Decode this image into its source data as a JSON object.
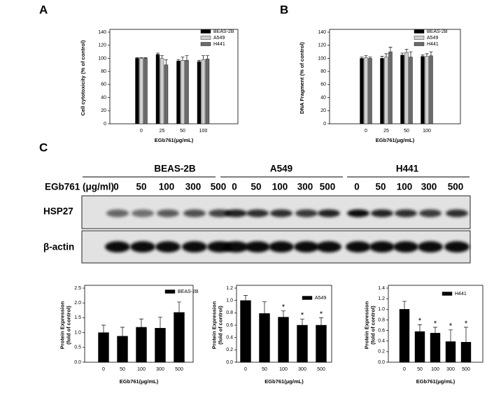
{
  "panels": [
    "A",
    "B",
    "C"
  ],
  "blot": {
    "groups": [
      "BEAS-2B",
      "A549",
      "H441"
    ],
    "dose_label": "EGb761 (μg/ml)",
    "doses": [
      "0",
      "50",
      "100",
      "300",
      "500",
      "0",
      "50",
      "100",
      "300",
      "500",
      "0",
      "50",
      "100",
      "300",
      "500"
    ],
    "rows": [
      "HSP27",
      "β-actin"
    ]
  },
  "chart_data": [
    {
      "type": "bar",
      "ylabel": [
        "Cell cytotoxicity (% of control)"
      ],
      "xlabel": "EGb761(μg/mL)",
      "categories": [
        "0",
        "25",
        "50",
        "100"
      ],
      "series": [
        {
          "name": "BEAS-2B",
          "color": "#000000",
          "values": [
            100,
            106,
            96,
            95
          ],
          "errors": [
            1,
            2,
            2,
            2
          ]
        },
        {
          "name": "A549",
          "color": "#d0d0d0",
          "values": [
            100,
            100,
            97,
            98
          ],
          "errors": [
            1,
            4,
            5,
            6
          ]
        },
        {
          "name": "H441",
          "color": "#6a6a6a",
          "values": [
            100,
            90,
            97,
            99
          ],
          "errors": [
            1,
            8,
            7,
            5
          ]
        }
      ],
      "ylim": [
        0,
        140
      ],
      "yticks": [
        0,
        20,
        40,
        60,
        80,
        100,
        120,
        140
      ]
    },
    {
      "type": "bar",
      "ylabel": [
        "DNA Fragment (% of control)"
      ],
      "xlabel": "EGb761(μg/mL)",
      "categories": [
        "0",
        "25",
        "50",
        "100"
      ],
      "series": [
        {
          "name": "BEAS-2B",
          "color": "#000000",
          "values": [
            100,
            100,
            105,
            103
          ],
          "errors": [
            2,
            3,
            3,
            2
          ]
        },
        {
          "name": "A549",
          "color": "#d0d0d0",
          "values": [
            101,
            102,
            109,
            103
          ],
          "errors": [
            3,
            5,
            5,
            4
          ]
        },
        {
          "name": "H441",
          "color": "#6a6a6a",
          "values": [
            100,
            110,
            102,
            104
          ],
          "errors": [
            2,
            7,
            8,
            6
          ]
        }
      ],
      "ylim": [
        0,
        140
      ],
      "yticks": [
        0,
        20,
        40,
        60,
        80,
        100,
        120,
        140
      ]
    },
    {
      "type": "bar",
      "ylabel": [
        "Protein Expression",
        "(fold of control)"
      ],
      "xlabel": "EGb761(μg/mL)",
      "categories": [
        "0",
        "50",
        "100",
        "300",
        "500"
      ],
      "series": [
        {
          "name": "BEAS-2B",
          "color": "#000000",
          "values": [
            1.0,
            0.88,
            1.18,
            1.15,
            1.68
          ],
          "errors": [
            0.25,
            0.3,
            0.28,
            0.37,
            0.35
          ]
        }
      ],
      "ylim": [
        0,
        2.5
      ],
      "yticks": [
        {
          "value": 0,
          "label": "0.0"
        },
        0.5,
        {
          "value": 1,
          "label": "1.0"
        },
        1.5,
        {
          "value": 2,
          "label": "2.0"
        },
        2.5
      ]
    },
    {
      "type": "bar",
      "ylabel": [
        "Protein Expression",
        "(fold of control)"
      ],
      "xlabel": "EGb761(μg/mL)",
      "categories": [
        "0",
        "50",
        "100",
        "300",
        "500"
      ],
      "series": [
        {
          "name": "A549",
          "color": "#000000",
          "values": [
            1.0,
            0.79,
            0.73,
            0.6,
            0.6
          ],
          "errors": [
            0.08,
            0.19,
            0.1,
            0.1,
            0.12
          ]
        }
      ],
      "markers": [
        null,
        null,
        "*",
        "*",
        "*"
      ],
      "ylim": [
        0,
        1.2
      ],
      "yticks": [
        {
          "value": 0,
          "label": "0.0"
        },
        0.2,
        0.4,
        0.6,
        0.8,
        {
          "value": 1,
          "label": "1.0"
        },
        1.2
      ]
    },
    {
      "type": "bar",
      "ylabel": [
        "Protein Expression",
        "(fold of control)"
      ],
      "xlabel": "EGb761(μg/mL)",
      "categories": [
        "0",
        "50",
        "100",
        "300",
        "500"
      ],
      "series": [
        {
          "name": "H441",
          "color": "#000000",
          "values": [
            1.0,
            0.58,
            0.55,
            0.39,
            0.38
          ],
          "errors": [
            0.15,
            0.13,
            0.11,
            0.22,
            0.28
          ]
        }
      ],
      "markers": [
        null,
        "*",
        "*",
        "*",
        "*"
      ],
      "ylim": [
        0,
        1.4
      ],
      "yticks": [
        {
          "value": 0,
          "label": "0.0"
        },
        0.2,
        0.4,
        0.6,
        0.8,
        {
          "value": 1,
          "label": "1.0"
        },
        1.2,
        1.4
      ]
    }
  ]
}
